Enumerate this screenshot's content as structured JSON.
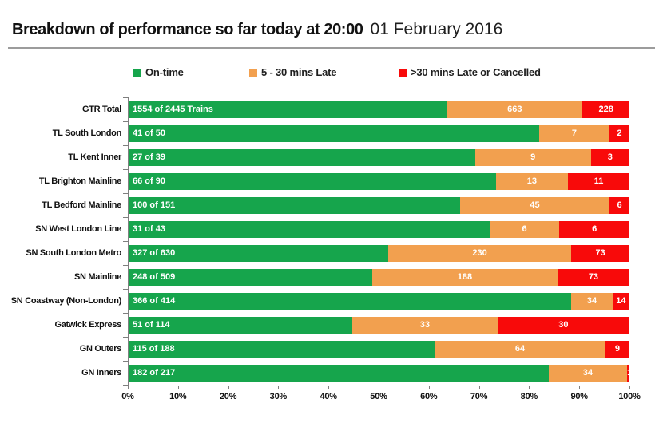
{
  "header": {
    "title": "Breakdown of performance so far today at 20:00",
    "date": "01 February 2016"
  },
  "legend": {
    "items": [
      {
        "label": "On-time",
        "color": "#16A54C"
      },
      {
        "label": "5 - 30 mins Late",
        "color": "#F2A04F"
      },
      {
        "label": ">30 mins Late or Cancelled",
        "color": "#F80A0A"
      }
    ]
  },
  "chart_data": {
    "type": "bar",
    "orientation": "horizontal",
    "stacked": "percent",
    "title": "Breakdown of performance so far today at 20:00 01 February 2016",
    "xlabel": "",
    "ylabel": "",
    "xlim": [
      0,
      100
    ],
    "grid": false,
    "legend_position": "top",
    "categories": [
      "GTR Total",
      "TL South London",
      "TL Kent Inner",
      "TL Brighton Mainline",
      "TL Bedford Mainline",
      "SN West London Line",
      "SN South London Metro",
      "SN Mainline",
      "SN Coastway (Non-London)",
      "Gatwick Express",
      "GN Outers",
      "GN Inners"
    ],
    "totals": [
      2445,
      50,
      39,
      90,
      151,
      43,
      630,
      509,
      414,
      114,
      188,
      217
    ],
    "series": [
      {
        "name": "On-time",
        "color": "#16A54C",
        "values": [
          1554,
          41,
          27,
          66,
          100,
          31,
          327,
          248,
          366,
          51,
          115,
          182
        ],
        "labels": [
          "1554 of 2445 Trains",
          "41 of 50",
          "27 of 39",
          "66 of 90",
          "100 of 151",
          "31 of 43",
          "327 of 630",
          "248 of 509",
          "366 of 414",
          "51 of 114",
          "115 of 188",
          "182 of 217"
        ]
      },
      {
        "name": "5 - 30 mins Late",
        "color": "#F2A04F",
        "values": [
          663,
          7,
          9,
          13,
          45,
          6,
          230,
          188,
          34,
          33,
          64,
          34
        ],
        "labels": [
          "663",
          "7",
          "9",
          "13",
          "45",
          "6",
          "230",
          "188",
          "34",
          "33",
          "64",
          "34"
        ]
      },
      {
        "name": ">30 mins Late or Cancelled",
        "color": "#F80A0A",
        "values": [
          228,
          2,
          3,
          11,
          6,
          6,
          73,
          73,
          14,
          30,
          9,
          1
        ],
        "labels": [
          "228",
          "2",
          "3",
          "11",
          "6",
          "6",
          "73",
          "73",
          "14",
          "30",
          "9",
          "1"
        ]
      }
    ],
    "x_ticks": [
      "0%",
      "10%",
      "20%",
      "30%",
      "40%",
      "50%",
      "60%",
      "70%",
      "80%",
      "90%",
      "100%"
    ]
  }
}
